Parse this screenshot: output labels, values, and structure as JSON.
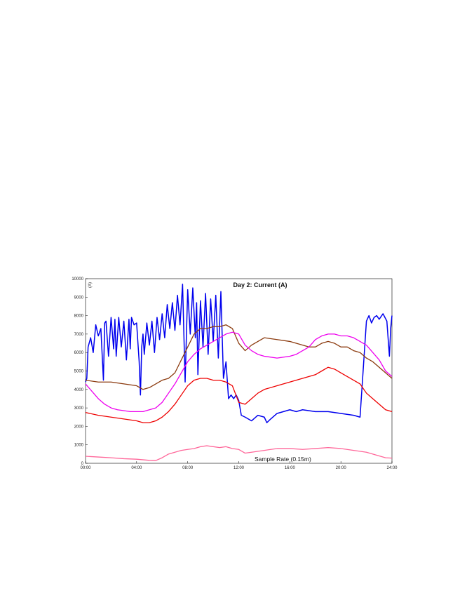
{
  "chart_data": {
    "type": "line",
    "title": "Day 2: Current (A)",
    "ylabel": "(A)",
    "annotation": "Sample Rate (0.15m)",
    "xlim": [
      0,
      24
    ],
    "ylim": [
      0,
      10000
    ],
    "x_ticks": [
      {
        "value": 0,
        "label": "00:00"
      },
      {
        "value": 4,
        "label": "04:00"
      },
      {
        "value": 8,
        "label": "08:00"
      },
      {
        "value": 12,
        "label": "12:00"
      },
      {
        "value": 16,
        "label": "16:00"
      },
      {
        "value": 20,
        "label": "20:00"
      },
      {
        "value": 24,
        "label": "24:00"
      }
    ],
    "y_ticks": [
      {
        "value": 0,
        "label": "0"
      },
      {
        "value": 1000,
        "label": "1000"
      },
      {
        "value": 2000,
        "label": "2000"
      },
      {
        "value": 3000,
        "label": "3000"
      },
      {
        "value": 4000,
        "label": "4000"
      },
      {
        "value": 5000,
        "label": "5000"
      },
      {
        "value": 6000,
        "label": "6000"
      },
      {
        "value": 7000,
        "label": "7000"
      },
      {
        "value": 8000,
        "label": "8000"
      },
      {
        "value": 9000,
        "label": "9000"
      },
      {
        "value": 10000,
        "label": "10000"
      }
    ],
    "grid": false,
    "series": [
      {
        "color": "#0000ee",
        "x": [
          0,
          0.1,
          0.2,
          0.4,
          0.6,
          0.8,
          1.0,
          1.2,
          1.4,
          1.5,
          1.6,
          1.8,
          2.0,
          2.2,
          2.3,
          2.4,
          2.6,
          2.8,
          3.0,
          3.2,
          3.4,
          3.5,
          3.6,
          3.8,
          4.0,
          4.2,
          4.3,
          4.4,
          4.5,
          4.6,
          4.8,
          5.0,
          5.2,
          5.4,
          5.6,
          5.8,
          6.0,
          6.2,
          6.4,
          6.6,
          6.8,
          7.0,
          7.2,
          7.4,
          7.6,
          7.8,
          8.0,
          8.2,
          8.4,
          8.6,
          8.7,
          8.8,
          9.0,
          9.2,
          9.4,
          9.6,
          9.8,
          10.0,
          10.2,
          10.4,
          10.6,
          10.8,
          11.0,
          11.2,
          11.4,
          11.6,
          11.8,
          12.0,
          12.2,
          12.5,
          13.0,
          13.5,
          14.0,
          14.2,
          14.5,
          15.0,
          15.5,
          16.0,
          16.5,
          17.0,
          18.0,
          19.0,
          20.0,
          21.0,
          21.5,
          22.0,
          22.2,
          22.4,
          22.6,
          22.8,
          23.0,
          23.3,
          23.6,
          23.8,
          23.9,
          24.0
        ],
        "y": [
          4400,
          4600,
          6300,
          6800,
          6000,
          7500,
          6900,
          7300,
          4500,
          7600,
          7700,
          5800,
          7900,
          6200,
          7800,
          5800,
          7900,
          6300,
          7700,
          5600,
          7800,
          6200,
          7900,
          7500,
          7600,
          5500,
          3700,
          6300,
          7000,
          5900,
          7600,
          6400,
          7700,
          6000,
          7900,
          6700,
          8100,
          6800,
          8600,
          7300,
          8700,
          7200,
          9100,
          7500,
          9700,
          4400,
          9400,
          7000,
          9500,
          6800,
          8700,
          4800,
          8800,
          6300,
          9200,
          5900,
          8900,
          6600,
          9100,
          5700,
          9300,
          4600,
          5500,
          3500,
          3700,
          3500,
          3700,
          3400,
          2600,
          2500,
          2300,
          2600,
          2500,
          2200,
          2400,
          2700,
          2800,
          2900,
          2800,
          2900,
          2800,
          2800,
          2700,
          2600,
          2500,
          7700,
          8000,
          7600,
          7900,
          8000,
          7800,
          8100,
          7700,
          5800,
          7300,
          8000
        ]
      },
      {
        "color": "#8b3a0e",
        "x": [
          0,
          1,
          2,
          3,
          4,
          4.5,
          5,
          5.5,
          6,
          6.5,
          7,
          7.5,
          8,
          8.5,
          9,
          9.5,
          10,
          10.5,
          11,
          11.5,
          12,
          12.5,
          13,
          13.5,
          14,
          15,
          16,
          17,
          17.5,
          18,
          18.5,
          19,
          19.5,
          20,
          20.5,
          21,
          21.5,
          22,
          22.5,
          23,
          23.5,
          24
        ],
        "y": [
          4500,
          4400,
          4400,
          4300,
          4200,
          4000,
          4100,
          4300,
          4500,
          4600,
          4900,
          5600,
          6300,
          7000,
          7300,
          7300,
          7400,
          7400,
          7500,
          7300,
          6500,
          6100,
          6400,
          6600,
          6800,
          6700,
          6600,
          6400,
          6300,
          6300,
          6500,
          6600,
          6500,
          6300,
          6300,
          6100,
          6000,
          5700,
          5500,
          5200,
          4900,
          4600
        ]
      },
      {
        "color": "#ee00ee",
        "x": [
          0,
          0.5,
          1,
          1.5,
          2,
          2.5,
          3,
          3.5,
          4,
          4.5,
          5,
          5.5,
          6,
          6.5,
          7,
          7.5,
          8,
          8.5,
          9,
          9.5,
          10,
          10.5,
          11,
          11.5,
          12,
          12.5,
          13,
          13.5,
          14,
          15,
          16,
          16.5,
          17,
          17.5,
          18,
          18.5,
          19,
          19.5,
          20,
          20.5,
          21,
          21.5,
          22,
          22.5,
          23,
          23.5,
          24
        ],
        "y": [
          4300,
          3900,
          3500,
          3200,
          3000,
          2900,
          2850,
          2800,
          2800,
          2800,
          2900,
          3000,
          3300,
          3800,
          4300,
          4900,
          5500,
          5900,
          6200,
          6400,
          6600,
          6800,
          7000,
          7100,
          7000,
          6400,
          6100,
          5900,
          5800,
          5700,
          5800,
          5900,
          6100,
          6300,
          6700,
          6900,
          7000,
          7000,
          6900,
          6900,
          6800,
          6600,
          6400,
          6000,
          5600,
          5000,
          4700
        ]
      },
      {
        "color": "#ee0000",
        "x": [
          0,
          1,
          2,
          3,
          4,
          4.5,
          5,
          5.5,
          6,
          6.5,
          7,
          7.5,
          8,
          8.5,
          9,
          9.5,
          10,
          10.5,
          11,
          11.5,
          12,
          12.5,
          13,
          13.5,
          14,
          15,
          16,
          17,
          17.5,
          18,
          18.5,
          19,
          19.5,
          20,
          20.5,
          21,
          21.5,
          22,
          22.5,
          23,
          23.5,
          24
        ],
        "y": [
          2750,
          2600,
          2500,
          2400,
          2300,
          2200,
          2200,
          2300,
          2500,
          2800,
          3200,
          3700,
          4200,
          4500,
          4600,
          4600,
          4500,
          4500,
          4400,
          4200,
          3300,
          3200,
          3500,
          3800,
          4000,
          4200,
          4400,
          4600,
          4700,
          4800,
          5000,
          5200,
          5100,
          4900,
          4700,
          4500,
          4300,
          3800,
          3500,
          3200,
          2900,
          2800
        ]
      },
      {
        "color": "#ff6699",
        "x": [
          0,
          1,
          2,
          3,
          4,
          5,
          5.5,
          6,
          6.5,
          7,
          7.5,
          8,
          8.5,
          9,
          9.5,
          10,
          10.5,
          11,
          11.5,
          12,
          12.5,
          13,
          14,
          15,
          16,
          17,
          18,
          19,
          20,
          21,
          22,
          22.5,
          23,
          23.5,
          24
        ],
        "y": [
          380,
          340,
          300,
          250,
          220,
          160,
          150,
          300,
          500,
          600,
          700,
          750,
          800,
          900,
          950,
          900,
          850,
          900,
          800,
          750,
          550,
          600,
          700,
          800,
          800,
          750,
          800,
          850,
          800,
          700,
          600,
          500,
          400,
          300,
          280
        ]
      }
    ]
  }
}
